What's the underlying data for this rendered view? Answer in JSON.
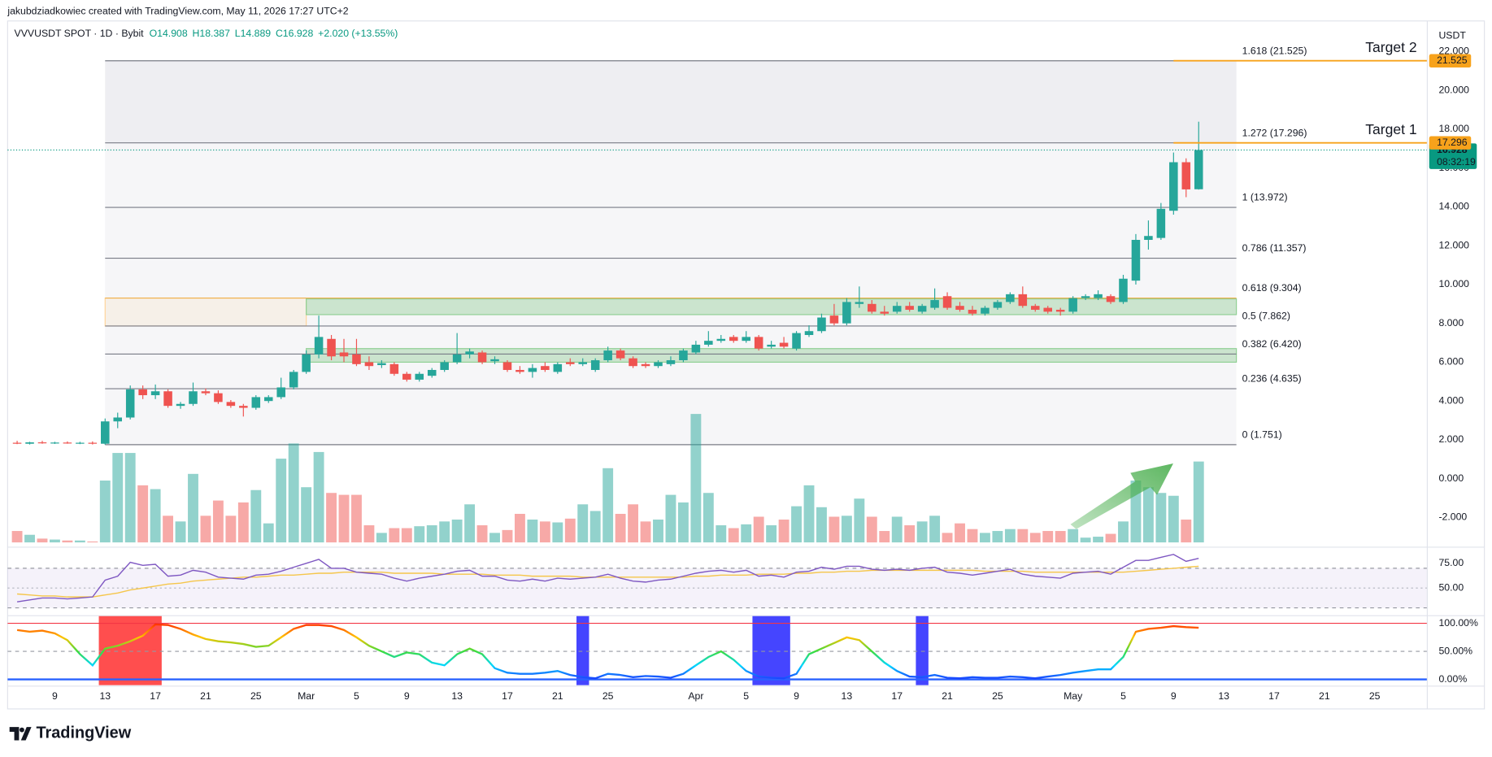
{
  "chart_data": {
    "type": "candlestick",
    "title": "jakubdziadkowiec created with TradingView.com, May 11, 2026 17:27 UTC+2",
    "symbol": "VVVUSDT SPOT · 1D · Bybit",
    "legend": [
      "O14.908",
      "H18.387",
      "L14.889",
      "C16.928",
      "+2.020 (+13.55%)"
    ],
    "currency": "USDT",
    "brand": "TradingView",
    "colors": {
      "up": "#26a69a",
      "down": "#ef5350"
    },
    "x": [
      "Feb 6",
      "Feb 7",
      "Feb 8",
      "Feb 9",
      "Feb 10",
      "Feb 11",
      "Feb 12",
      "Feb 13",
      "Feb 14",
      "Feb 15",
      "Feb 16",
      "Feb 17",
      "Feb 18",
      "Feb 19",
      "Feb 20",
      "Feb 21",
      "Feb 22",
      "Feb 23",
      "Feb 24",
      "Feb 25",
      "Feb 26",
      "Feb 27",
      "Feb 28",
      "Mar 1",
      "Mar 2",
      "Mar 3",
      "Mar 4",
      "Mar 5",
      "Mar 6",
      "Mar 7",
      "Mar 8",
      "Mar 9",
      "Mar 10",
      "Mar 11",
      "Mar 12",
      "Mar 13",
      "Mar 14",
      "Mar 15",
      "Mar 16",
      "Mar 17",
      "Mar 18",
      "Mar 19",
      "Mar 20",
      "Mar 21",
      "Mar 22",
      "Mar 23",
      "Mar 24",
      "Mar 25",
      "Mar 26",
      "Mar 27",
      "Mar 28",
      "Mar 29",
      "Mar 30",
      "Mar 31",
      "Apr 1",
      "Apr 2",
      "Apr 3",
      "Apr 4",
      "Apr 5",
      "Apr 6",
      "Apr 7",
      "Apr 8",
      "Apr 9",
      "Apr 10",
      "Apr 11",
      "Apr 12",
      "Apr 13",
      "Apr 14",
      "Apr 15",
      "Apr 16",
      "Apr 17",
      "Apr 18",
      "Apr 19",
      "Apr 20",
      "Apr 21",
      "Apr 22",
      "Apr 23",
      "Apr 24",
      "Apr 25",
      "Apr 26",
      "Apr 27",
      "Apr 28",
      "Apr 29",
      "Apr 30",
      "May 1",
      "May 2",
      "May 3",
      "May 4",
      "May 5",
      "May 6",
      "May 7",
      "May 8",
      "May 9",
      "May 10",
      "May 11"
    ],
    "xticks": [
      {
        "value": "Feb 9",
        "label": "9"
      },
      {
        "value": "Feb 13",
        "label": "13"
      },
      {
        "value": "Feb 17",
        "label": "17"
      },
      {
        "value": "Feb 21",
        "label": "21"
      },
      {
        "value": "Feb 25",
        "label": "25"
      },
      {
        "value": "Mar 1",
        "label": "Mar"
      },
      {
        "value": "Mar 5",
        "label": "5"
      },
      {
        "value": "Mar 9",
        "label": "9"
      },
      {
        "value": "Mar 13",
        "label": "13"
      },
      {
        "value": "Mar 17",
        "label": "17"
      },
      {
        "value": "Mar 21",
        "label": "21"
      },
      {
        "value": "Mar 25",
        "label": "25"
      },
      {
        "value": "Apr 1",
        "label": "Apr"
      },
      {
        "value": "Apr 5",
        "label": "5"
      },
      {
        "value": "Apr 9",
        "label": "9"
      },
      {
        "value": "Apr 13",
        "label": "13"
      },
      {
        "value": "Apr 17",
        "label": "17"
      },
      {
        "value": "Apr 21",
        "label": "21"
      },
      {
        "value": "Apr 25",
        "label": "25"
      },
      {
        "value": "May 1",
        "label": "May"
      },
      {
        "value": "May 5",
        "label": "5"
      },
      {
        "value": "May 9",
        "label": "9"
      },
      {
        "value": "May 13",
        "label": "13"
      },
      {
        "value": "May 17",
        "label": "17"
      },
      {
        "value": "May 21",
        "label": "21"
      },
      {
        "value": "May 25",
        "label": "25"
      }
    ],
    "ylim": [
      -3.43,
      22.4
    ],
    "yticks": [
      {
        "value": 22,
        "label": "22.000"
      },
      {
        "value": 20,
        "label": "20.000"
      },
      {
        "value": 18,
        "label": "18.000"
      },
      {
        "value": 16,
        "label": "16.000"
      },
      {
        "value": 14,
        "label": "14.000"
      },
      {
        "value": 12,
        "label": "12.000"
      },
      {
        "value": 10,
        "label": "10.000"
      },
      {
        "value": 8,
        "label": "8.000"
      },
      {
        "value": 6,
        "label": "6.000"
      },
      {
        "value": 4,
        "label": "4.000"
      },
      {
        "value": 2,
        "label": "2.000"
      },
      {
        "value": 0,
        "label": "0.000"
      },
      {
        "value": -2,
        "label": "-2.000"
      }
    ],
    "grid": false,
    "open": [
      1.85,
      1.8,
      1.87,
      1.83,
      1.86,
      1.82,
      1.85,
      1.8,
      2.95,
      3.15,
      4.6,
      4.3,
      4.5,
      3.75,
      3.85,
      4.5,
      4.4,
      3.95,
      3.75,
      3.65,
      4.0,
      4.2,
      4.7,
      5.5,
      6.4,
      7.2,
      6.5,
      6.4,
      6.0,
      5.85,
      5.9,
      5.4,
      5.1,
      5.3,
      5.6,
      6.0,
      6.4,
      6.5,
      6.05,
      6.0,
      5.6,
      5.5,
      5.8,
      5.5,
      6.0,
      5.9,
      5.6,
      6.1,
      6.6,
      6.2,
      5.9,
      5.8,
      5.9,
      6.1,
      6.5,
      6.9,
      7.1,
      7.3,
      7.1,
      7.3,
      6.8,
      7.0,
      6.7,
      7.4,
      7.6,
      8.4,
      8.0,
      9.0,
      9.0,
      8.6,
      8.6,
      8.9,
      8.6,
      8.8,
      9.4,
      8.9,
      8.7,
      8.5,
      8.8,
      9.1,
      9.5,
      8.9,
      8.8,
      8.7,
      8.6,
      9.3,
      9.3,
      9.4,
      9.1,
      10.2,
      12.3,
      12.4,
      13.8,
      16.3,
      14.908
    ],
    "high": [
      1.95,
      1.9,
      1.95,
      1.9,
      1.92,
      1.9,
      1.92,
      3.1,
      3.4,
      4.8,
      4.8,
      4.85,
      4.6,
      3.95,
      4.95,
      4.65,
      4.55,
      4.05,
      3.85,
      4.3,
      4.3,
      5.2,
      5.6,
      6.6,
      8.4,
      7.4,
      7.2,
      7.2,
      6.3,
      6.1,
      6.0,
      5.5,
      5.5,
      5.7,
      6.1,
      7.5,
      6.7,
      6.6,
      6.3,
      6.1,
      5.8,
      5.9,
      6.0,
      6.0,
      6.2,
      6.2,
      6.2,
      6.8,
      6.7,
      6.3,
      6.0,
      6.1,
      6.3,
      6.7,
      7.1,
      7.6,
      7.4,
      7.4,
      7.6,
      7.4,
      7.1,
      7.3,
      7.6,
      7.9,
      8.5,
      9.0,
      9.3,
      9.9,
      9.2,
      8.9,
      9.1,
      9.1,
      9.0,
      9.8,
      9.6,
      9.1,
      8.9,
      8.9,
      9.2,
      9.6,
      9.9,
      9.0,
      8.9,
      8.8,
      9.4,
      9.5,
      9.7,
      9.5,
      10.5,
      12.6,
      13.3,
      14.2,
      16.8,
      16.5,
      18.387
    ],
    "low": [
      1.78,
      1.76,
      1.8,
      1.79,
      1.8,
      1.78,
      1.76,
      1.75,
      2.6,
      3.05,
      4.1,
      4.1,
      3.65,
      3.6,
      3.75,
      4.3,
      3.85,
      3.65,
      3.2,
      3.55,
      3.9,
      4.1,
      4.6,
      5.4,
      6.2,
      6.1,
      6.0,
      5.8,
      5.6,
      5.7,
      5.3,
      5.0,
      5.0,
      5.2,
      5.5,
      5.9,
      6.2,
      5.9,
      5.9,
      5.5,
      5.4,
      5.2,
      5.5,
      5.4,
      5.8,
      5.8,
      5.5,
      6.0,
      6.1,
      5.7,
      5.7,
      5.7,
      5.8,
      6.0,
      6.4,
      6.8,
      7.0,
      7.0,
      7.0,
      6.6,
      6.7,
      6.7,
      6.6,
      7.3,
      7.5,
      7.9,
      7.9,
      8.8,
      8.5,
      8.4,
      8.5,
      8.6,
      8.5,
      8.7,
      8.7,
      8.6,
      8.4,
      8.4,
      8.7,
      9.0,
      8.8,
      8.6,
      8.5,
      8.4,
      8.5,
      9.2,
      9.2,
      9.0,
      9.0,
      10.0,
      11.8,
      12.3,
      13.6,
      14.5,
      14.889
    ],
    "close": [
      1.8,
      1.87,
      1.83,
      1.86,
      1.82,
      1.85,
      1.8,
      2.95,
      3.15,
      4.6,
      4.3,
      4.5,
      3.75,
      3.85,
      4.5,
      4.4,
      3.95,
      3.75,
      3.65,
      4.2,
      4.2,
      4.7,
      5.5,
      6.4,
      7.3,
      6.3,
      6.3,
      5.9,
      5.8,
      5.95,
      5.4,
      5.1,
      5.4,
      5.6,
      6.0,
      6.4,
      6.55,
      6.0,
      6.15,
      5.6,
      5.5,
      5.7,
      5.6,
      5.9,
      5.9,
      6.0,
      6.1,
      6.6,
      6.2,
      5.8,
      5.8,
      6.0,
      6.1,
      6.6,
      6.9,
      7.1,
      7.2,
      7.1,
      7.3,
      6.7,
      6.9,
      6.8,
      7.5,
      7.6,
      8.3,
      8.0,
      9.1,
      9.1,
      8.6,
      8.5,
      8.9,
      8.7,
      8.9,
      9.2,
      8.8,
      8.7,
      8.5,
      8.8,
      9.1,
      9.5,
      8.9,
      8.7,
      8.6,
      8.6,
      9.3,
      9.4,
      9.5,
      9.1,
      10.3,
      12.3,
      12.5,
      13.9,
      16.3,
      14.9,
      16.928
    ],
    "volume": [
      12,
      8,
      4,
      3,
      2,
      2,
      1,
      65,
      94,
      94,
      60,
      56,
      28,
      22,
      72,
      28,
      44,
      28,
      42,
      55,
      20,
      88,
      104,
      58,
      95,
      52,
      50,
      50,
      18,
      10,
      15,
      15,
      17,
      18,
      22,
      24,
      40,
      18,
      10,
      13,
      30,
      24,
      22,
      21,
      25,
      40,
      33,
      78,
      30,
      40,
      22,
      24,
      50,
      42,
      135,
      52,
      18,
      15,
      19,
      27,
      18,
      24,
      38,
      60,
      37,
      27,
      28,
      46,
      27,
      12,
      27,
      18,
      22,
      28,
      10,
      20,
      14,
      10,
      12,
      14,
      14,
      10,
      12,
      12,
      14,
      5,
      6,
      9,
      22,
      65,
      58,
      52,
      49,
      24,
      85
    ],
    "fib": {
      "from": "Feb 13",
      "to": "May 14",
      "levels": [
        {
          "label": "0 (1.751)",
          "value": 1.751,
          "color": "#787b86"
        },
        {
          "label": "0.236 (4.635)",
          "value": 4.635,
          "color": "#787b86"
        },
        {
          "label": "0.382 (6.420)",
          "value": 6.42,
          "color": "#787b86"
        },
        {
          "label": "0.5 (7.862)",
          "value": 7.862,
          "color": "#787b86"
        },
        {
          "label": "0.618 (9.304)",
          "value": 9.304,
          "color": "#f0b04a"
        },
        {
          "label": "0.786 (11.357)",
          "value": 11.357,
          "color": "#787b86"
        },
        {
          "label": "1 (13.972)",
          "value": 13.972,
          "color": "#787b86"
        },
        {
          "label": "1.272 (17.296)",
          "value": 17.296,
          "color": "#787b86"
        },
        {
          "label": "1.618 (21.525)",
          "value": 21.525,
          "color": "#787b86"
        }
      ]
    },
    "boxes": [
      {
        "from": "Feb 13",
        "to": "Mar 1",
        "top": 9.304,
        "bottom": 7.862,
        "fill": "rgba(255,183,77,0.09)",
        "stroke": "#ffd59a"
      },
      {
        "from": "Mar 1",
        "to": "May 14",
        "top": 9.26,
        "bottom": 8.45,
        "fill": "rgba(76,175,80,0.25)",
        "stroke": "#8fcf93"
      },
      {
        "from": "Mar 1",
        "to": "May 14",
        "top": 6.7,
        "bottom": 6.0,
        "fill": "rgba(76,175,80,0.25)",
        "stroke": "#8fcf93"
      }
    ],
    "targets": [
      {
        "label": "Target 2",
        "value": 21.525,
        "value_label": "21.525",
        "from": "May 9",
        "color": "#f7a21b"
      },
      {
        "label": "Target 1",
        "value": 17.296,
        "value_label": "17.296",
        "from": "May 9",
        "color": "#f7a21b"
      }
    ],
    "last_price": {
      "value": 16.928,
      "label": "16.928",
      "countdown": "08:32:19",
      "color": "#089981"
    },
    "rsi": {
      "values": [
        36,
        38,
        40,
        40,
        39,
        40,
        41,
        58,
        62,
        76,
        73,
        74,
        62,
        63,
        68,
        66,
        61,
        60,
        59,
        63,
        64,
        67,
        71,
        75,
        79,
        70,
        70,
        66,
        65,
        64,
        60,
        57,
        60,
        62,
        64,
        67,
        68,
        62,
        62,
        58,
        57,
        59,
        57,
        60,
        59,
        60,
        61,
        64,
        60,
        57,
        56,
        58,
        59,
        62,
        65,
        67,
        68,
        66,
        68,
        62,
        63,
        61,
        66,
        67,
        71,
        69,
        72,
        72,
        69,
        68,
        69,
        68,
        70,
        71,
        66,
        65,
        63,
        65,
        67,
        69,
        64,
        62,
        61,
        60,
        65,
        66,
        67,
        64,
        71,
        78,
        78,
        81,
        84,
        77,
        80
      ],
      "ma": [
        44,
        43,
        42,
        42,
        41,
        41,
        41,
        43,
        45,
        48,
        50,
        52,
        54,
        55,
        57,
        58,
        59,
        60,
        61,
        61,
        62,
        63,
        63,
        64,
        65,
        65,
        66,
        66,
        66,
        66,
        65,
        65,
        65,
        65,
        64,
        64,
        64,
        64,
        63,
        63,
        63,
        62,
        62,
        62,
        62,
        61,
        61,
        61,
        61,
        61,
        61,
        61,
        61,
        61,
        62,
        62,
        63,
        63,
        63,
        64,
        64,
        64,
        65,
        65,
        66,
        66,
        67,
        67,
        68,
        68,
        68,
        68,
        68,
        68,
        68,
        68,
        68,
        67,
        67,
        67,
        67,
        66,
        66,
        66,
        66,
        66,
        66,
        66,
        66,
        67,
        68,
        69,
        70,
        71,
        72
      ],
      "color": "#7e57c2",
      "ma_color": "#f5c64b",
      "ylim": [
        24,
        89.4
      ],
      "yticks": [
        {
          "value": 75,
          "label": "75.00"
        },
        {
          "value": 50,
          "label": "50.00"
        }
      ],
      "bands": [
        70,
        30
      ],
      "midline": 50
    },
    "oscillator": {
      "values": [
        88,
        85,
        87,
        82,
        70,
        45,
        25,
        55,
        60,
        68,
        78,
        98,
        97,
        90,
        80,
        72,
        68,
        66,
        63,
        58,
        60,
        75,
        90,
        97,
        97,
        95,
        88,
        75,
        60,
        50,
        40,
        48,
        45,
        30,
        25,
        45,
        55,
        45,
        20,
        12,
        10,
        10,
        12,
        15,
        8,
        4,
        2,
        10,
        8,
        4,
        6,
        5,
        3,
        10,
        25,
        40,
        50,
        35,
        15,
        5,
        3,
        2,
        10,
        45,
        55,
        65,
        75,
        70,
        50,
        30,
        15,
        5,
        4,
        8,
        3,
        2,
        4,
        3,
        3,
        5,
        4,
        2,
        5,
        8,
        12,
        15,
        18,
        18,
        40,
        85,
        90,
        92,
        95,
        93,
        92
      ],
      "gradient": [
        "#1e3cff",
        "#00d8ff",
        "#3ddc3d",
        "#ffc400",
        "#ff2a00"
      ],
      "ylim": [
        -10.2,
        113.6
      ],
      "yticks": [
        {
          "value": 100,
          "label": "100.00%"
        },
        {
          "value": 50,
          "label": "50.00%"
        },
        {
          "value": 0,
          "label": "0.00%"
        }
      ],
      "levels": [
        {
          "value": 100,
          "color": "#f23645",
          "dash": false
        },
        {
          "value": 50,
          "color": "#9598a1",
          "dash": true
        },
        {
          "value": 0,
          "color": "#2962ff",
          "dash": false
        }
      ],
      "zones": [
        {
          "from": "Feb 13",
          "to": "Feb 17",
          "color": "#ff4545"
        },
        {
          "from": "Mar 23",
          "to": "Mar 23",
          "color": "#3b3bff"
        },
        {
          "from": "Apr 6",
          "to": "Apr 8",
          "color": "#3b3bff"
        },
        {
          "from": "Apr 19",
          "to": "Apr 19",
          "color": "#3b3bff"
        }
      ]
    }
  }
}
